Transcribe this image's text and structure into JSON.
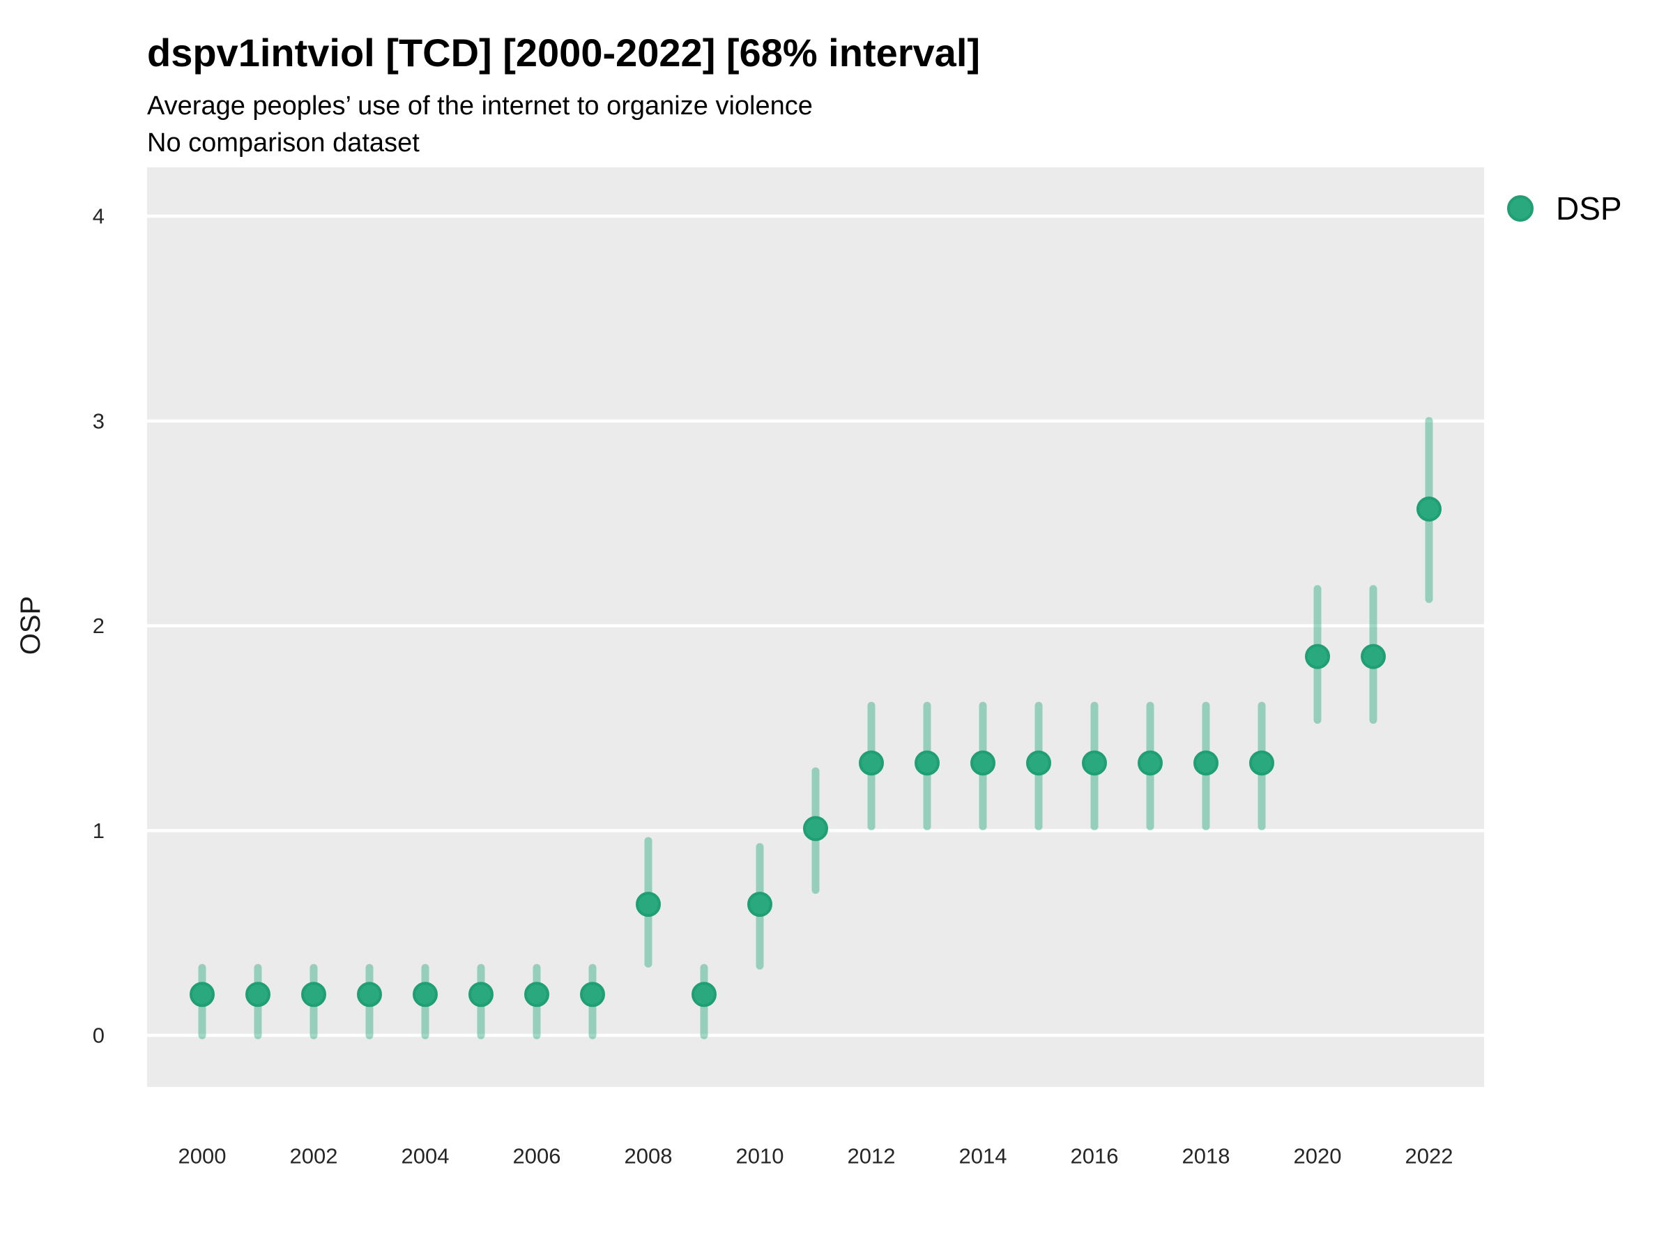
{
  "header": {
    "title": "dspv1intviol [TCD] [2000-2022] [68% interval]",
    "subtitle": "Average peoples’ use of the internet to organize violence",
    "note": "No comparison dataset"
  },
  "legend": {
    "label": "DSP"
  },
  "axes": {
    "y_title": "OSP",
    "y_tick_labels": [
      "0",
      "1",
      "2",
      "3",
      "4"
    ],
    "x_tick_labels": [
      "2000",
      "2002",
      "2004",
      "2006",
      "2008",
      "2010",
      "2012",
      "2014",
      "2016",
      "2018",
      "2020",
      "2022"
    ]
  },
  "colors": {
    "point_fill": "#2AA87E",
    "point_stroke": "#1F9F73",
    "interval_bar": "rgba(42,168,127,0.44)",
    "panel_background": "#EBEBEB",
    "gridline": "#FFFFFF",
    "tick_label": "#262626",
    "text": "#000000"
  },
  "chart_data": {
    "type": "pointrange",
    "title": "dspv1intviol [TCD] [2000-2022] [68% interval]",
    "subtitle": "Average peoples’ use of the internet to organize violence",
    "note": "No comparison dataset",
    "xlabel": "",
    "ylabel": "OSP",
    "legend_position": "right",
    "grid": "horizontal-major-only",
    "interval_level": "68%",
    "ylim": [
      -0.25,
      4.25
    ],
    "y_breaks": [
      0,
      1,
      2,
      3,
      4
    ],
    "x_breaks": [
      2000,
      2002,
      2004,
      2006,
      2008,
      2010,
      2012,
      2014,
      2016,
      2018,
      2020,
      2022
    ],
    "series": [
      {
        "name": "DSP",
        "years": [
          2000,
          2001,
          2002,
          2003,
          2004,
          2005,
          2006,
          2007,
          2008,
          2009,
          2010,
          2011,
          2012,
          2013,
          2014,
          2015,
          2016,
          2017,
          2018,
          2019,
          2020,
          2021,
          2022
        ],
        "estimate": [
          0.2,
          0.2,
          0.2,
          0.2,
          0.2,
          0.2,
          0.2,
          0.2,
          0.64,
          0.2,
          0.64,
          1.01,
          1.33,
          1.33,
          1.33,
          1.33,
          1.33,
          1.33,
          1.33,
          1.33,
          1.85,
          1.85,
          2.57
        ],
        "lower": [
          0.0,
          0.0,
          0.0,
          0.0,
          0.0,
          0.0,
          0.0,
          0.0,
          0.35,
          0.0,
          0.34,
          0.71,
          1.02,
          1.02,
          1.02,
          1.02,
          1.02,
          1.02,
          1.02,
          1.02,
          1.54,
          1.54,
          2.13
        ],
        "upper": [
          0.33,
          0.33,
          0.33,
          0.33,
          0.33,
          0.33,
          0.33,
          0.33,
          0.95,
          0.33,
          0.92,
          1.29,
          1.61,
          1.61,
          1.61,
          1.61,
          1.61,
          1.61,
          1.61,
          1.61,
          2.18,
          2.18,
          3.0
        ]
      }
    ]
  }
}
